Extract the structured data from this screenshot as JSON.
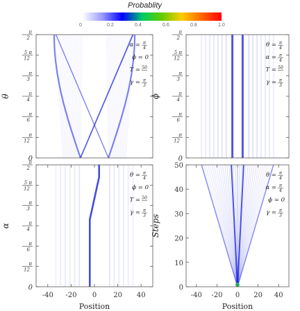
{
  "colorbar": {
    "title": "Probablity",
    "ticks": [
      "0",
      "0.2",
      "0.4",
      "0.6",
      "0.8",
      "1.0"
    ],
    "tick_values": [
      0,
      0.2,
      0.4,
      0.6,
      0.8,
      1.0
    ],
    "stops": [
      "#ffffff",
      "#9999ff",
      "#0000ff",
      "#00cc66",
      "#66cc00",
      "#ffcc00",
      "#ff6600",
      "#ff0000"
    ]
  },
  "chart_data": [
    {
      "type": "heatmap",
      "id": "top-left",
      "ylabel": "θ",
      "xlabel": "",
      "xlim": [
        -50,
        50
      ],
      "yticks": [
        {
          "frac": "π/2",
          "value": 1.5708
        },
        {
          "frac": "5π/12",
          "value": 1.309
        },
        {
          "frac": "π/3",
          "value": 1.0472
        },
        {
          "frac": "π/4",
          "value": 0.7854
        },
        {
          "frac": "π/6",
          "value": 0.5236
        },
        {
          "frac": "π/12",
          "value": 0.2618
        },
        {
          "frac": "0",
          "value": 0
        }
      ],
      "ylim": [
        0,
        1.5708
      ],
      "params": [
        {
          "sym": "α",
          "val": "π/4"
        },
        {
          "sym": "ϕ",
          "val": "0"
        },
        {
          "sym": "T",
          "val": "50"
        },
        {
          "sym": "γ",
          "val": "π/3"
        }
      ],
      "description_pattern": "crossing",
      "peak_positions_at_theta0": [
        -12,
        12
      ],
      "peak_positions_at_theta_pi2": [
        -35,
        35
      ]
    },
    {
      "type": "heatmap",
      "id": "top-right",
      "ylabel": "ϕ",
      "xlabel": "",
      "xlim": [
        -50,
        50
      ],
      "yticks": [
        {
          "frac": "π/2",
          "value": 1.5708
        },
        {
          "frac": "5π/12",
          "value": 1.309
        },
        {
          "frac": "π/3",
          "value": 1.0472
        },
        {
          "frac": "π/4",
          "value": 0.7854
        },
        {
          "frac": "π/6",
          "value": 0.5236
        },
        {
          "frac": "π/12",
          "value": 0.2618
        },
        {
          "frac": "0",
          "value": 0
        }
      ],
      "ylim": [
        0,
        1.5708
      ],
      "params": [
        {
          "sym": "θ",
          "val": "π/4"
        },
        {
          "sym": "α",
          "val": "π/4"
        },
        {
          "sym": "T",
          "val": "50"
        },
        {
          "sym": "γ",
          "val": "π/3"
        }
      ],
      "description_pattern": "vertical",
      "peak_positions": [
        -5,
        5
      ],
      "secondary_positions": [
        -35,
        -31,
        -27,
        -23,
        -19,
        -15,
        -11,
        11,
        15,
        19,
        23,
        27,
        31,
        35
      ]
    },
    {
      "type": "heatmap",
      "id": "bottom-left",
      "ylabel": "α",
      "xlabel": "Position",
      "xlim": [
        -50,
        50
      ],
      "xticks": [
        -40,
        -20,
        0,
        20,
        40
      ],
      "yticks": [
        {
          "frac": "π/2",
          "value": 1.5708
        },
        {
          "frac": "5π/12",
          "value": 1.309
        },
        {
          "frac": "π/3",
          "value": 1.0472
        },
        {
          "frac": "π/4",
          "value": 0.7854
        },
        {
          "frac": "π/6",
          "value": 0.5236
        },
        {
          "frac": "π/12",
          "value": 0.2618
        },
        {
          "frac": "0",
          "value": 0
        }
      ],
      "ylim": [
        0,
        1.5708
      ],
      "params": [
        {
          "sym": "θ",
          "val": "π/4"
        },
        {
          "sym": "ϕ",
          "val": "0"
        },
        {
          "sym": "T",
          "val": "50"
        },
        {
          "sym": "γ",
          "val": "π/3"
        }
      ],
      "description_pattern": "shifting",
      "peak_at_alpha0": -4,
      "peak_at_alpha_pi2": 4,
      "secondary_positions": [
        -33,
        -29,
        -25,
        -21,
        -17,
        -13,
        13,
        17,
        21,
        25,
        29,
        33
      ]
    },
    {
      "type": "heatmap",
      "id": "bottom-right",
      "ylabel": "Steps",
      "xlabel": "Position",
      "xlim": [
        -50,
        50
      ],
      "xticks": [
        -40,
        -20,
        0,
        20,
        40
      ],
      "yticks_numeric": [
        0,
        10,
        20,
        30,
        40,
        50
      ],
      "ylim": [
        0,
        50
      ],
      "params": [
        {
          "sym": "θ",
          "val": "π/4"
        },
        {
          "sym": "α",
          "val": "π/4"
        },
        {
          "sym": "ϕ",
          "val": "0"
        },
        {
          "sym": "γ",
          "val": "π/3"
        }
      ],
      "description_pattern": "cone",
      "cone_slope_outer": 0.7,
      "cone_slope_inner": 0.12
    }
  ]
}
